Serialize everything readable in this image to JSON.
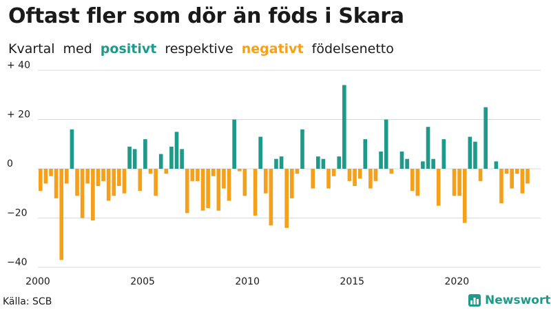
{
  "title": "Oftast fler som dör än föds i Skara",
  "subtitle": {
    "w1": "Kvartal",
    "w2": "med",
    "positive": "positivt",
    "w4": "respektive",
    "negative": "negativt",
    "w6": "födelsenetto"
  },
  "source": "Källa: SCB",
  "brand": "Newsworthy",
  "brand_icon": "bar-chart-logo-icon",
  "colors": {
    "positive": "#1f9a8a",
    "negative": "#f5a01a",
    "grid": "#d9d9d9",
    "text": "#1a1a1a"
  },
  "chart_data": {
    "type": "bar",
    "grid": true,
    "ylim": [
      -40,
      40
    ],
    "y_ticks": [
      {
        "value": 40,
        "label": "+ 40"
      },
      {
        "value": 20,
        "label": "+ 20"
      },
      {
        "value": 0,
        "label": "0"
      },
      {
        "value": -20,
        "label": "−20"
      },
      {
        "value": -40,
        "label": "−40"
      }
    ],
    "x_start": 2000,
    "x_end": 2024,
    "x_ticks": [
      {
        "value": 2000,
        "label": "2000"
      },
      {
        "value": 2005,
        "label": "2005"
      },
      {
        "value": 2010,
        "label": "2010"
      },
      {
        "value": 2015,
        "label": "2015"
      },
      {
        "value": 2020,
        "label": "2020"
      }
    ],
    "quarters_per_year": 4,
    "values": [
      -9,
      -6,
      -3,
      -12,
      -37,
      -6,
      16,
      -11,
      -20,
      -6,
      -21,
      -7,
      -5,
      -13,
      -11,
      -7,
      -10,
      9,
      8,
      -9,
      12,
      -2,
      -11,
      6,
      -2,
      9,
      15,
      8,
      -18,
      -5,
      -5,
      -17,
      -16,
      -3,
      -17,
      -8,
      -13,
      20,
      -1,
      -11,
      0,
      -19,
      13,
      -10,
      -23,
      4,
      5,
      -24,
      -12,
      -2,
      16,
      0,
      -8,
      5,
      4,
      -8,
      -3,
      5,
      34,
      -5,
      -7,
      -4,
      12,
      -8,
      -5,
      7,
      20,
      -2,
      0,
      7,
      4,
      -9,
      -11,
      3,
      17,
      4,
      -15,
      12,
      0,
      -11,
      -11,
      -22,
      13,
      11,
      -5,
      25,
      0,
      3,
      -14,
      -2,
      -8,
      -2,
      -10,
      -6
    ]
  }
}
